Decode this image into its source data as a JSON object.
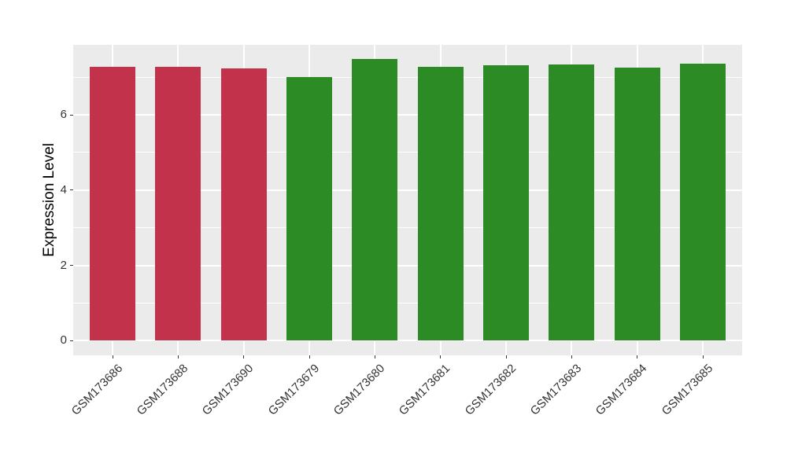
{
  "chart_data": {
    "type": "bar",
    "title": "",
    "xlabel": "",
    "ylabel": "Expression Level",
    "categories": [
      "GSM173686",
      "GSM173688",
      "GSM173690",
      "GSM173679",
      "GSM173680",
      "GSM173681",
      "GSM173682",
      "GSM173683",
      "GSM173684",
      "GSM173685"
    ],
    "values": [
      7.28,
      7.28,
      7.24,
      7.0,
      7.48,
      7.28,
      7.31,
      7.33,
      7.26,
      7.35
    ],
    "bar_colors": [
      "#C3324B",
      "#C3324B",
      "#C3324B",
      "#2C8B24",
      "#2C8B24",
      "#2C8B24",
      "#2C8B24",
      "#2C8B24",
      "#2C8B24",
      "#2C8B24"
    ],
    "y_ticks": [
      0,
      2,
      4,
      6
    ],
    "y_minor_gridlines": [
      1,
      3,
      5,
      7
    ],
    "ylim": [
      -0.39,
      7.86
    ],
    "bar_width_fraction": 0.7,
    "outer_pad_fraction": 0.6,
    "x_label_angle_deg": -45,
    "grid": true,
    "legend_position": "none",
    "colors": {
      "figure_background": "#FFFFFF",
      "panel_background": "#EBEBEB",
      "gridline": "#FFFFFF",
      "axis_text": "#333333",
      "axis_title": "#000000",
      "tick_mark": "#333333",
      "bar_red": "#C3324B",
      "bar_green": "#2C8B24"
    }
  }
}
